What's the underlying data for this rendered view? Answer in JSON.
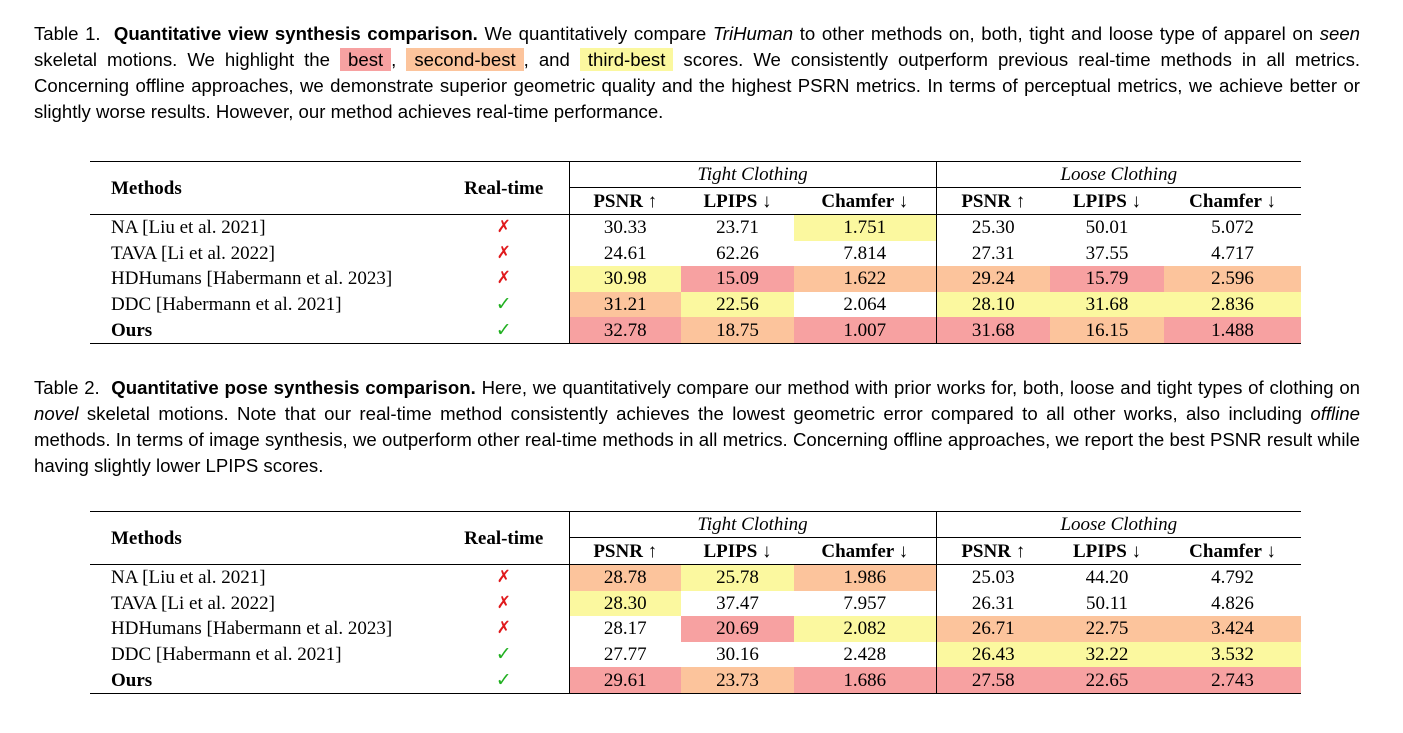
{
  "colors": {
    "best": "#f7a1a1",
    "second": "#fcc49c",
    "third": "#fbf89f",
    "cross": "#e0191c",
    "check": "#20b020"
  },
  "table1": {
    "caption": {
      "prefix": "Table 1.",
      "title": "Quantitative view synthesis comparison.",
      "t1": "We quantitatively compare",
      "trihuman": "TriHuman",
      "t2": "to other methods on, both, tight and loose type of apparel on",
      "seen": "seen",
      "t3": "skeletal motions. We highlight the",
      "best": "best",
      "comma": ",",
      "second": "second-best",
      "and": ", and",
      "third": "third-best",
      "t4": "scores. We consistently outperform previous real-time methods in all metrics. Concerning offline approaches, we demonstrate superior geometric quality and the highest PSRN metrics. In terms of perceptual metrics, we achieve better or slightly worse results. However, our method achieves real-time performance."
    },
    "header": {
      "methods": "Methods",
      "realtime": "Real-time",
      "tight": "Tight Clothing",
      "loose": "Loose Clothing",
      "psnr": "PSNR ↑",
      "lpips": "LPIPS ↓",
      "chamfer": "Chamfer ↓"
    },
    "rows": [
      {
        "method": "NA [Liu et al. 2021]",
        "rt": "✗",
        "v": [
          "30.33",
          "23.71",
          "1.751",
          "25.30",
          "50.01",
          "5.072"
        ]
      },
      {
        "method": "TAVA [Li et al. 2022]",
        "rt": "✗",
        "v": [
          "24.61",
          "62.26",
          "7.814",
          "27.31",
          "37.55",
          "4.717"
        ]
      },
      {
        "method": "HDHumans [Habermann et al. 2023]",
        "rt": "✗",
        "v": [
          "30.98",
          "15.09",
          "1.622",
          "29.24",
          "15.79",
          "2.596"
        ]
      },
      {
        "method": "DDC [Habermann et al. 2021]",
        "rt": "✓",
        "v": [
          "31.21",
          "22.56",
          "2.064",
          "28.10",
          "31.68",
          "2.836"
        ]
      },
      {
        "method": "Ours",
        "rt": "✓",
        "v": [
          "32.78",
          "18.75",
          "1.007",
          "31.68",
          "16.15",
          "1.488"
        ]
      }
    ]
  },
  "table2": {
    "caption": {
      "prefix": "Table 2.",
      "title": "Quantitative pose synthesis comparison.",
      "t1": "Here, we quantitatively compare our method with prior works for, both, loose and tight types of clothing on",
      "novel": "novel",
      "t2": "skeletal motions. Note that our real-time method consistently achieves the lowest geometric error compared to all other works, also including",
      "offline": "offline",
      "t3": "methods. In terms of image synthesis, we outperform other real-time methods in all metrics. Concerning offline approaches, we report the best PSNR result while having slightly lower LPIPS scores."
    },
    "header": {
      "methods": "Methods",
      "realtime": "Real-time",
      "tight": "Tight Clothing",
      "loose": "Loose Clothing",
      "psnr": "PSNR ↑",
      "lpips": "LPIPS ↓",
      "chamfer": "Chamfer ↓"
    },
    "rows": [
      {
        "method": "NA [Liu et al. 2021]",
        "rt": "✗",
        "v": [
          "28.78",
          "25.78",
          "1.986",
          "25.03",
          "44.20",
          "4.792"
        ]
      },
      {
        "method": "TAVA [Li et al. 2022]",
        "rt": "✗",
        "v": [
          "28.30",
          "37.47",
          "7.957",
          "26.31",
          "50.11",
          "4.826"
        ]
      },
      {
        "method": "HDHumans [Habermann et al. 2023]",
        "rt": "✗",
        "v": [
          "28.17",
          "20.69",
          "2.082",
          "26.71",
          "22.75",
          "3.424"
        ]
      },
      {
        "method": "DDC [Habermann et al. 2021]",
        "rt": "✓",
        "v": [
          "27.77",
          "30.16",
          "2.428",
          "26.43",
          "32.22",
          "3.532"
        ]
      },
      {
        "method": "Ours",
        "rt": "✓",
        "v": [
          "29.61",
          "23.73",
          "1.686",
          "27.58",
          "22.65",
          "2.743"
        ]
      }
    ]
  }
}
